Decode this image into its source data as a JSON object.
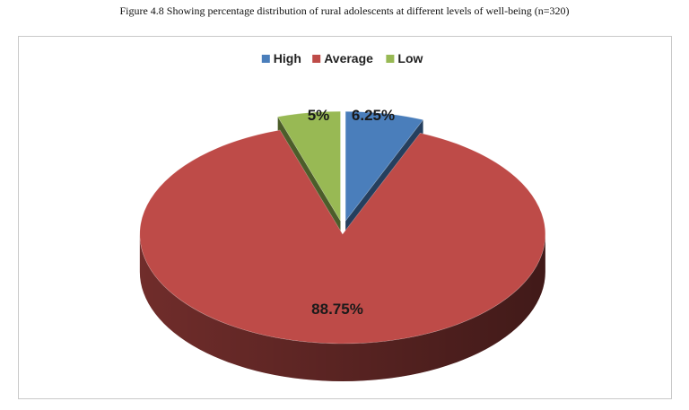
{
  "caption": "Figure 4.8 Showing percentage distribution of rural adolescents at different levels of well-being (n=320)",
  "chart_data": {
    "type": "pie",
    "style": "3d-exploded",
    "legend_position": "top",
    "slices": [
      {
        "label": "High",
        "value": 6.25,
        "display": "6.25%",
        "color": "#4a7ebb"
      },
      {
        "label": "Average",
        "value": 88.75,
        "display": "88.75%",
        "color": "#be4b48"
      },
      {
        "label": "Low",
        "value": 5,
        "display": "5%",
        "color": "#98b954"
      }
    ]
  }
}
